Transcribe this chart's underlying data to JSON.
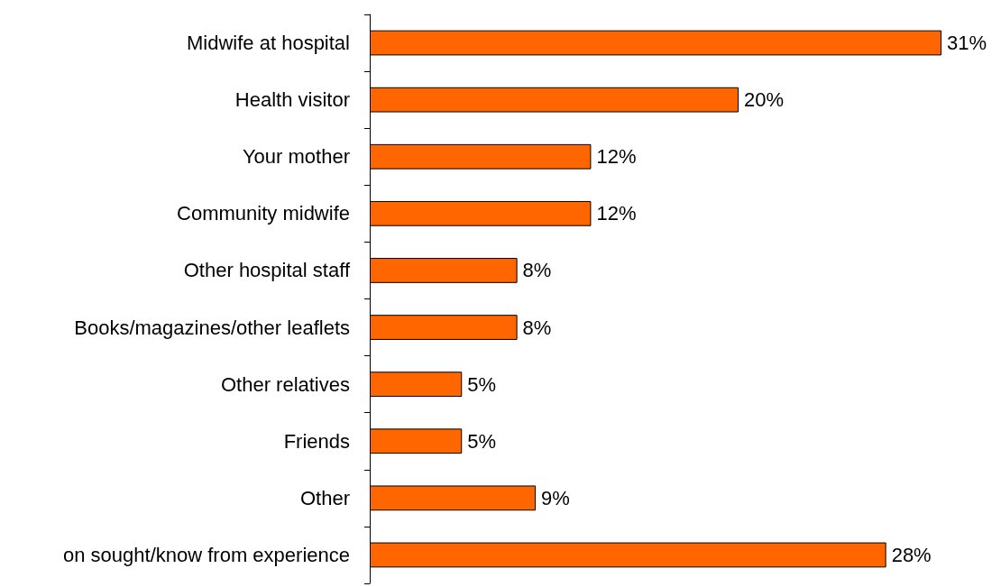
{
  "chart_data": {
    "type": "bar",
    "orientation": "horizontal",
    "categories": [
      "Midwife at hospital",
      "Health visitor",
      "Your mother",
      "Community midwife",
      "Other hospital staff",
      "Books/magazines/other leaflets",
      "Other relatives",
      "Friends",
      "Other",
      "on sought/know from experience"
    ],
    "values": [
      31,
      20,
      12,
      12,
      8,
      8,
      5,
      5,
      9,
      28
    ],
    "value_labels": [
      "31%",
      "20%",
      "12%",
      "12%",
      "8%",
      "8%",
      "5%",
      "5%",
      "9%",
      "28%"
    ],
    "color": "#ff6600"
  }
}
